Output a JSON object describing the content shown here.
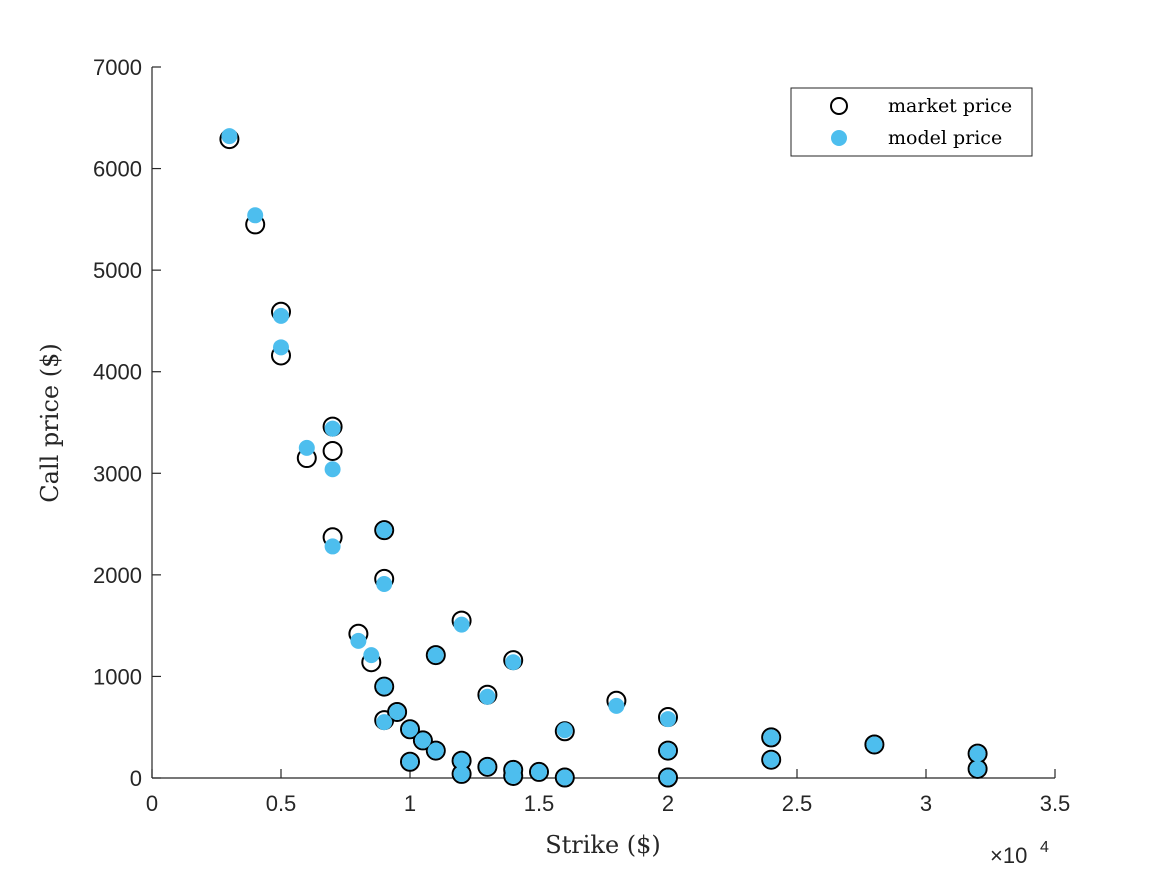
{
  "chart_data": {
    "type": "scatter",
    "title": "",
    "xlabel": "Strike ($)",
    "ylabel": "Call price ($)",
    "x_exponent_label": "×10",
    "x_exponent_power": "4",
    "xlim": [
      0,
      35000
    ],
    "ylim": [
      0,
      7000
    ],
    "xticks": [
      0,
      5000,
      10000,
      15000,
      20000,
      25000,
      30000,
      35000
    ],
    "xtick_labels": [
      "0",
      "0.5",
      "1",
      "1.5",
      "2",
      "2.5",
      "3",
      "3.5"
    ],
    "yticks": [
      0,
      1000,
      2000,
      3000,
      4000,
      5000,
      6000,
      7000
    ],
    "ytick_labels": [
      "0",
      "1000",
      "2000",
      "3000",
      "4000",
      "5000",
      "6000",
      "7000"
    ],
    "grid": false,
    "legend_position": "top-right",
    "colors": {
      "market": "#000000",
      "model": "#4DBEEE"
    },
    "series": [
      {
        "name": "market price",
        "marker": "open-circle",
        "points": [
          [
            3000,
            6290
          ],
          [
            4000,
            5450
          ],
          [
            5000,
            4590
          ],
          [
            5000,
            4160
          ],
          [
            6000,
            3150
          ],
          [
            7000,
            3460
          ],
          [
            7000,
            3220
          ],
          [
            7000,
            2370
          ],
          [
            8000,
            1420
          ],
          [
            8500,
            1140
          ],
          [
            9000,
            2440
          ],
          [
            9000,
            1960
          ],
          [
            9000,
            900
          ],
          [
            9000,
            570
          ],
          [
            9500,
            650
          ],
          [
            10000,
            480
          ],
          [
            10000,
            160
          ],
          [
            10500,
            370
          ],
          [
            11000,
            1210
          ],
          [
            11000,
            270
          ],
          [
            12000,
            1550
          ],
          [
            12000,
            170
          ],
          [
            12000,
            40
          ],
          [
            13000,
            820
          ],
          [
            13000,
            110
          ],
          [
            14000,
            1160
          ],
          [
            14000,
            80
          ],
          [
            14000,
            20
          ],
          [
            15000,
            60
          ],
          [
            16000,
            460
          ],
          [
            16000,
            5
          ],
          [
            18000,
            760
          ],
          [
            20000,
            600
          ],
          [
            20000,
            270
          ],
          [
            20000,
            5
          ],
          [
            24000,
            400
          ],
          [
            24000,
            180
          ],
          [
            28000,
            330
          ],
          [
            32000,
            240
          ],
          [
            32000,
            90
          ]
        ]
      },
      {
        "name": "model price",
        "marker": "filled-circle",
        "points": [
          [
            3000,
            6320
          ],
          [
            4000,
            5540
          ],
          [
            5000,
            4550
          ],
          [
            5000,
            4240
          ],
          [
            6000,
            3250
          ],
          [
            7000,
            3440
          ],
          [
            7000,
            3040
          ],
          [
            7000,
            2280
          ],
          [
            8000,
            1350
          ],
          [
            8500,
            1210
          ],
          [
            9000,
            2440
          ],
          [
            9000,
            1910
          ],
          [
            9000,
            900
          ],
          [
            9000,
            550
          ],
          [
            9500,
            650
          ],
          [
            10000,
            480
          ],
          [
            10000,
            160
          ],
          [
            10500,
            370
          ],
          [
            11000,
            1210
          ],
          [
            11000,
            270
          ],
          [
            12000,
            1510
          ],
          [
            12000,
            170
          ],
          [
            12000,
            40
          ],
          [
            13000,
            800
          ],
          [
            13000,
            110
          ],
          [
            14000,
            1140
          ],
          [
            14000,
            80
          ],
          [
            14000,
            20
          ],
          [
            15000,
            60
          ],
          [
            16000,
            470
          ],
          [
            16000,
            5
          ],
          [
            18000,
            710
          ],
          [
            20000,
            580
          ],
          [
            20000,
            270
          ],
          [
            20000,
            5
          ],
          [
            24000,
            400
          ],
          [
            24000,
            180
          ],
          [
            28000,
            330
          ],
          [
            32000,
            240
          ],
          [
            32000,
            90
          ]
        ]
      }
    ]
  }
}
